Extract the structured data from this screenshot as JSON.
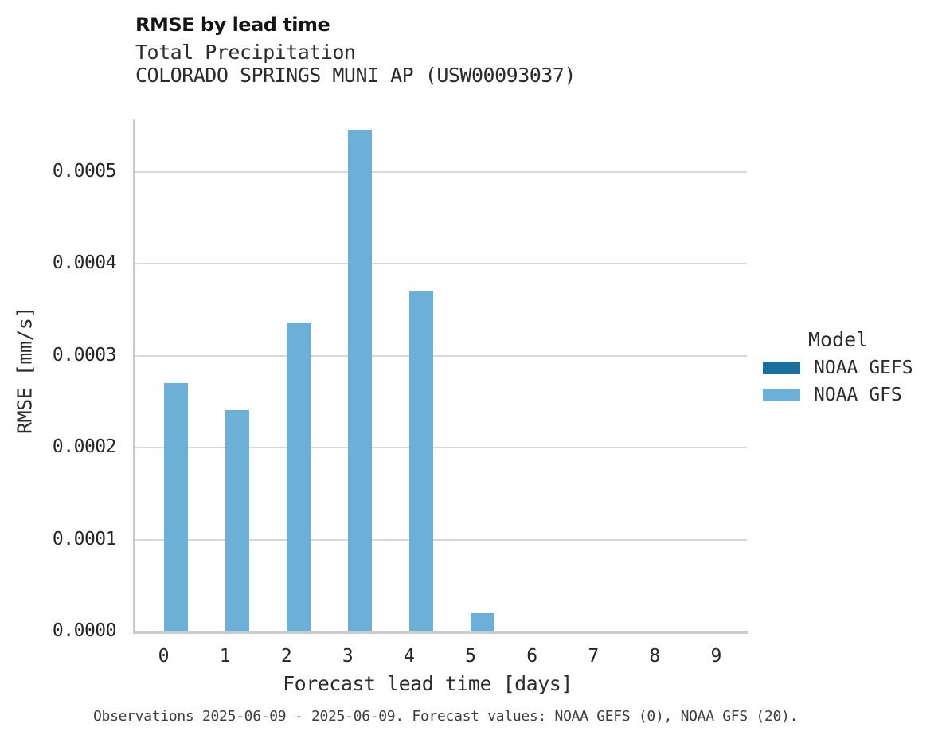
{
  "header": {
    "title": "RMSE by lead time",
    "subtitle_line1": "Total Precipitation",
    "subtitle_line2": "COLORADO SPRINGS MUNI AP (USW00093037)"
  },
  "footnote": "Observations 2025-06-09 - 2025-06-09. Forecast values: NOAA GEFS (0), NOAA GFS (20).",
  "legend": {
    "title": "Model",
    "entries": [
      {
        "label": "NOAA GEFS",
        "color": "#1b6f9e"
      },
      {
        "label": "NOAA GFS",
        "color": "#6cb0d8"
      }
    ]
  },
  "colors": {
    "gridline": "#d9d9d9",
    "spine": "#cccccc",
    "noaa_gefs": "#1b6f9e",
    "noaa_gfs": "#6cb0d8"
  },
  "chart_data": {
    "type": "bar",
    "title": "RMSE by lead time",
    "subtitle": "Total Precipitation — COLORADO SPRINGS MUNI AP (USW00093037)",
    "xlabel": "Forecast lead time [days]",
    "ylabel": "RMSE [mm/s]",
    "categories": [
      "0",
      "1",
      "2",
      "3",
      "4",
      "5",
      "6",
      "7",
      "8",
      "9"
    ],
    "series": [
      {
        "name": "NOAA GEFS",
        "color": "#1b6f9e",
        "values": [
          0,
          0,
          0,
          0,
          0,
          0,
          0,
          0,
          0,
          0
        ]
      },
      {
        "name": "NOAA GFS",
        "color": "#6cb0d8",
        "values": [
          0.00027,
          0.000241,
          0.000336,
          0.000546,
          0.00037,
          2e-05,
          0,
          0,
          0,
          0
        ]
      }
    ],
    "ylim": [
      0,
      0.000557
    ],
    "yticks": [
      0,
      0.0001,
      0.0002,
      0.0003,
      0.0004,
      0.0005
    ],
    "ytick_labels": [
      "0.0000",
      "0.0001",
      "0.0002",
      "0.0003",
      "0.0004",
      "0.0005"
    ],
    "grid": true,
    "legend_title": "Model",
    "legend_position": "center right"
  }
}
